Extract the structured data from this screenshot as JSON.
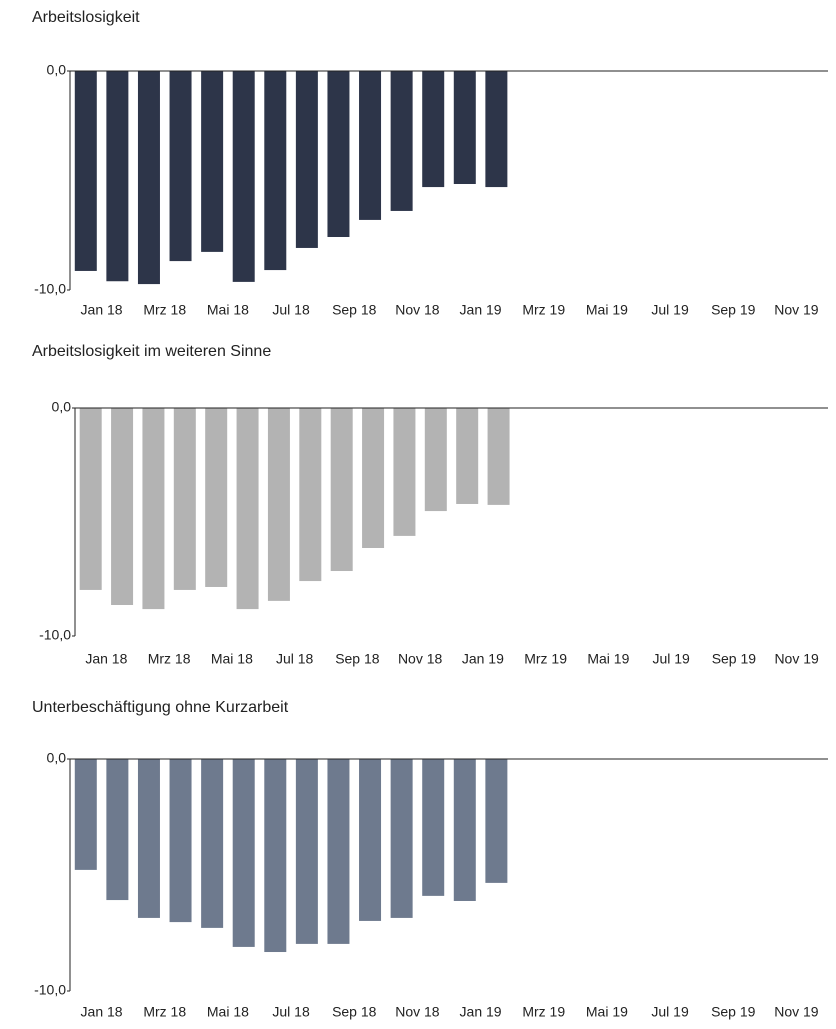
{
  "chart_data": [
    {
      "type": "bar",
      "title": "Arbeitslosigkeit",
      "categories": [
        "Jan 18",
        null,
        "Mrz 18",
        null,
        "Mai 18",
        null,
        "Jul 18",
        null,
        "Sep 18",
        null,
        "Nov 18",
        null,
        "Jan 19",
        null,
        "Mrz 19",
        null,
        "Mai 19",
        null,
        "Jul 19",
        null,
        "Sep 19",
        null,
        "Nov 19",
        null
      ],
      "values": [
        -9.13,
        -9.6,
        -9.73,
        -8.68,
        -8.26,
        -9.63,
        -9.09,
        -8.08,
        -7.58,
        -6.8,
        -6.39,
        -5.3,
        -5.16,
        -5.3,
        null,
        null,
        null,
        null,
        null,
        null,
        null,
        null,
        null,
        null
      ],
      "color": "#2d3549",
      "ylim": [
        -10,
        0
      ],
      "yticks": [
        {
          "value": 0,
          "label": "0,0"
        },
        {
          "value": -10,
          "label": "-10,0"
        }
      ]
    },
    {
      "type": "bar",
      "title": "Arbeitslosigkeit im weiteren Sinne",
      "categories": [
        "Jan 18",
        null,
        "Mrz 18",
        null,
        "Mai 18",
        null,
        "Jul 18",
        null,
        "Sep 18",
        null,
        "Nov 18",
        null,
        "Jan 19",
        null,
        "Mrz 19",
        null,
        "Mai 19",
        null,
        "Jul 19",
        null,
        "Sep 19",
        null,
        "Nov 19",
        null
      ],
      "values": [
        -7.98,
        -8.64,
        -8.82,
        -7.98,
        -7.85,
        -8.82,
        -8.46,
        -7.59,
        -7.15,
        -6.14,
        -5.61,
        -4.52,
        -4.21,
        -4.25,
        null,
        null,
        null,
        null,
        null,
        null,
        null,
        null,
        null,
        null
      ],
      "color": "#b3b3b3",
      "ylim": [
        -10,
        0
      ],
      "yticks": [
        {
          "value": 0,
          "label": "0,0"
        },
        {
          "value": -10,
          "label": "-10,0"
        }
      ]
    },
    {
      "type": "bar",
      "title": "Unterbeschäftigung ohne Kurzarbeit",
      "categories": [
        "Jan 18",
        null,
        "Mrz 18",
        null,
        "Mai 18",
        null,
        "Jul 18",
        null,
        "Sep 18",
        null,
        "Nov 18",
        null,
        "Jan 19",
        null,
        "Mrz 19",
        null,
        "Mai 19",
        null,
        "Jul 19",
        null,
        "Sep 19",
        null,
        "Nov 19",
        null
      ],
      "values": [
        -4.78,
        -6.08,
        -6.85,
        -7.03,
        -7.28,
        -8.1,
        -8.32,
        -7.97,
        -7.97,
        -6.98,
        -6.85,
        -5.9,
        -6.12,
        -5.34,
        null,
        null,
        null,
        null,
        null,
        null,
        null,
        null,
        null,
        null
      ],
      "color": "#6e7a8e",
      "ylim": [
        -10,
        0
      ],
      "yticks": [
        {
          "value": 0,
          "label": "0,0"
        },
        {
          "value": -10,
          "label": "-10,0"
        }
      ]
    }
  ]
}
